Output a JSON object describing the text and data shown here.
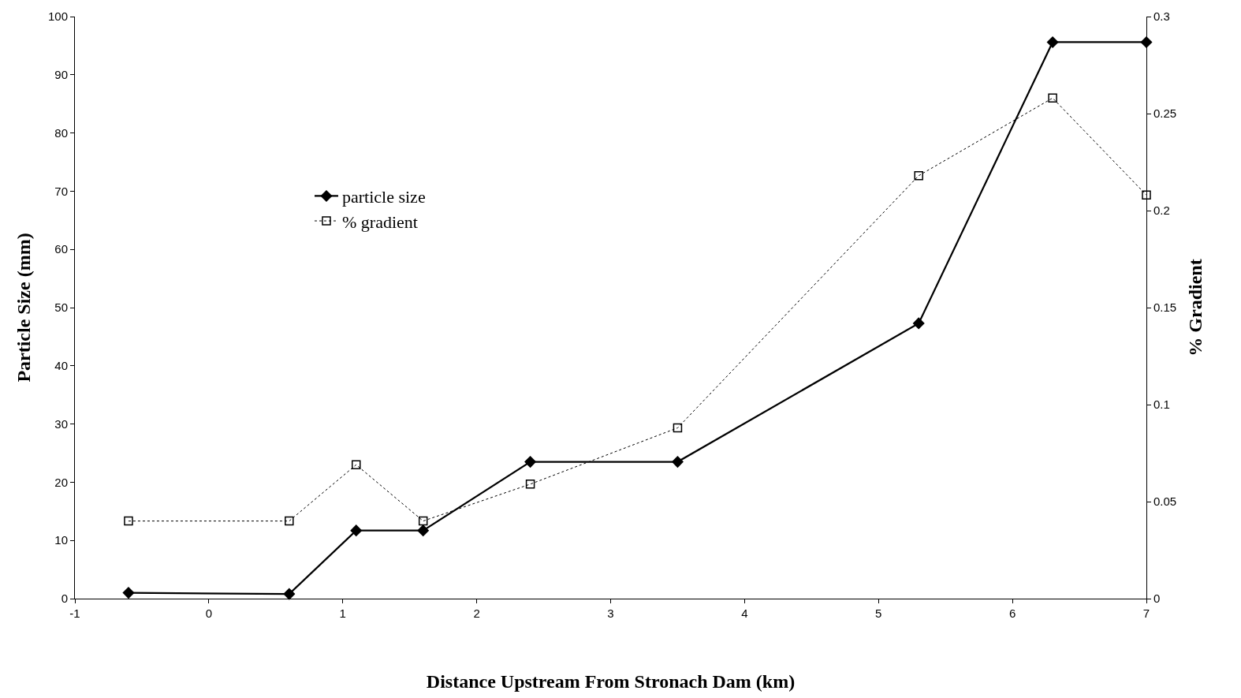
{
  "chart_data": {
    "type": "line",
    "xlabel": "Distance Upstream From Stronach Dam (km)",
    "ylabel": "Particle Size (mm)",
    "y2label": "% Gradient",
    "x": [
      -0.6,
      0.6,
      1.1,
      1.6,
      2.4,
      3.5,
      5.3,
      6.3,
      7
    ],
    "series": [
      {
        "name": "particle size",
        "color": "#000000",
        "marker": "diamond",
        "line_style": "solid",
        "values": [
          1,
          0.8,
          11.7,
          11.7,
          23.5,
          23.5,
          47.3,
          95.6,
          95.6
        ]
      },
      {
        "name": "% gradient",
        "color": "#000000",
        "marker": "square",
        "line_style": "dotted",
        "axis": "y2",
        "values": [
          0.04,
          0.04,
          0.069,
          0.04,
          0.059,
          0.088,
          0.218,
          0.258,
          0.208
        ]
      }
    ],
    "xlim": [
      -1,
      7
    ],
    "xticks": [
      -1,
      0,
      1,
      2,
      3,
      4,
      5,
      6,
      7
    ],
    "ylim": [
      0,
      100
    ],
    "yticks": [
      0,
      10,
      20,
      30,
      40,
      50,
      60,
      70,
      80,
      90,
      100
    ],
    "y2lim": [
      0,
      0.3
    ],
    "y2ticks": [
      0,
      0.05,
      0.1,
      0.15,
      0.2,
      0.25,
      0.3
    ],
    "legend": "top left"
  }
}
